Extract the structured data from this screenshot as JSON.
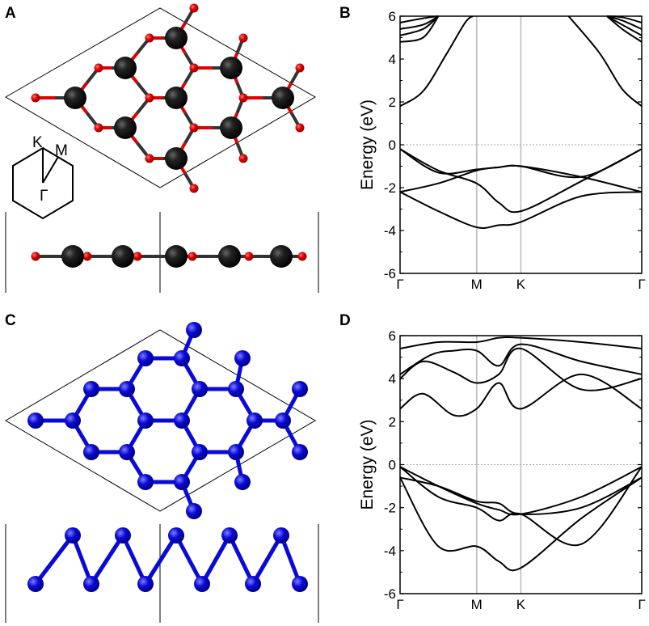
{
  "panels": {
    "A": "A",
    "B": "B",
    "C": "C",
    "D": "D"
  },
  "brillouin_zone": {
    "K": "K",
    "M": "M",
    "G": "Γ"
  },
  "colors": {
    "carbon": "#1a1a1a",
    "oxygen": "#e00000",
    "nitrogen": "#0a0ad8",
    "band": "#000000",
    "kline": "#bbbbbb",
    "fermi": "#aaaaaa"
  },
  "chart_data": [
    {
      "panel": "B",
      "type": "line",
      "ylabel": "Energy (eV)",
      "xlabel": "",
      "ylim": [
        -6,
        6
      ],
      "yticks": [
        6,
        4,
        2,
        0,
        -2,
        -4,
        -6
      ],
      "kpoint_labels": [
        "Γ",
        "M",
        "K",
        "Γ"
      ],
      "kpoint_pos": [
        0,
        1,
        1.577,
        3.155
      ],
      "series": [
        {
          "x": [
            0,
            0.5,
            1,
            1.289,
            1.577,
            2.366,
            3.155
          ],
          "y": [
            -0.2,
            -1.3,
            -1.15,
            -1.05,
            -1.0,
            -1.5,
            -0.2
          ]
        },
        {
          "x": [
            0,
            0.5,
            1,
            1.289,
            1.577,
            2.366,
            3.155
          ],
          "y": [
            -0.2,
            -1.2,
            -1.8,
            -2.7,
            -3.1,
            -1.7,
            -0.2
          ]
        },
        {
          "x": [
            0,
            0.5,
            1,
            1.289,
            1.577,
            2.366,
            3.155
          ],
          "y": [
            -2.2,
            -1.8,
            -1.2,
            -1.05,
            -1.0,
            -1.5,
            -2.2
          ]
        },
        {
          "x": [
            0,
            0.5,
            1,
            1.289,
            1.577,
            2.366,
            3.155
          ],
          "y": [
            -2.2,
            -3.1,
            -3.85,
            -3.75,
            -3.6,
            -2.4,
            -2.2
          ]
        },
        {
          "x": [
            0,
            0.3,
            0.6,
            0.85,
            0.95
          ],
          "y": [
            1.8,
            2.5,
            4.2,
            5.7,
            6.0
          ]
        },
        {
          "x": [
            2.2,
            2.6,
            2.9,
            3.155
          ],
          "y": [
            6.0,
            4.3,
            2.6,
            1.8
          ]
        },
        {
          "x": [
            0,
            0.3,
            0.5
          ],
          "y": [
            4.8,
            5.0,
            6.0
          ]
        },
        {
          "x": [
            0,
            0.3,
            0.5
          ],
          "y": [
            5.1,
            5.4,
            6.0
          ]
        },
        {
          "x": [
            0,
            0.3,
            0.5
          ],
          "y": [
            5.4,
            5.6,
            6.0
          ]
        },
        {
          "x": [
            0,
            0.3,
            0.5
          ],
          "y": [
            5.7,
            5.9,
            6.0
          ]
        },
        {
          "x": [
            2.7,
            2.9,
            3.155
          ],
          "y": [
            6.0,
            5.4,
            4.8
          ]
        },
        {
          "x": [
            2.7,
            2.9,
            3.155
          ],
          "y": [
            6.0,
            5.6,
            5.1
          ]
        },
        {
          "x": [
            2.7,
            2.9,
            3.155
          ],
          "y": [
            6.0,
            5.8,
            5.4
          ]
        },
        {
          "x": [
            2.7,
            2.9,
            3.155
          ],
          "y": [
            6.0,
            5.95,
            5.7
          ]
        }
      ]
    },
    {
      "panel": "D",
      "type": "line",
      "ylabel": "Energy (eV)",
      "xlabel": "",
      "ylim": [
        -6,
        6
      ],
      "yticks": [
        6,
        4,
        2,
        0,
        -2,
        -4,
        -6
      ],
      "kpoint_labels": [
        "Γ",
        "M",
        "K",
        "Γ"
      ],
      "kpoint_pos": [
        0,
        1,
        1.577,
        3.155
      ],
      "series": [
        {
          "x": [
            0,
            0.5,
            1,
            1.289,
            1.577,
            2.366,
            3.155
          ],
          "y": [
            -0.1,
            -1.0,
            -1.8,
            -2.1,
            -2.3,
            -1.5,
            -0.1
          ]
        },
        {
          "x": [
            0,
            0.5,
            1,
            1.289,
            1.577,
            2.366,
            3.155
          ],
          "y": [
            -0.1,
            -1.5,
            -2.0,
            -2.6,
            -2.3,
            -3.7,
            -0.1
          ]
        },
        {
          "x": [
            0,
            0.5,
            1,
            1.289,
            1.577,
            2.366,
            3.155
          ],
          "y": [
            -0.6,
            -3.8,
            -3.8,
            -4.5,
            -4.8,
            -2.5,
            -0.6
          ]
        },
        {
          "x": [
            0,
            0.5,
            1,
            1.289,
            1.577,
            2.366,
            3.155
          ],
          "y": [
            -0.6,
            -1.0,
            -1.7,
            -1.8,
            -2.3,
            -2.0,
            -0.6
          ]
        },
        {
          "x": [
            0,
            0.3,
            0.7,
            1,
            1.289,
            1.577,
            2.366,
            3.155
          ],
          "y": [
            2.6,
            3.3,
            2.3,
            2.6,
            3.8,
            2.6,
            4.2,
            2.6
          ]
        },
        {
          "x": [
            0,
            0.3,
            0.7,
            1,
            1.289,
            1.577,
            2.366,
            3.155
          ],
          "y": [
            4.0,
            4.8,
            4.3,
            3.8,
            4.2,
            5.4,
            3.5,
            4.0
          ]
        },
        {
          "x": [
            0,
            0.4,
            0.7,
            1,
            1.289,
            1.577,
            2.366,
            3.155
          ],
          "y": [
            4.2,
            5.1,
            5.3,
            5.3,
            4.6,
            5.6,
            4.8,
            4.2
          ]
        },
        {
          "x": [
            0,
            0.5,
            1,
            1.289,
            1.577,
            2.366,
            3.155
          ],
          "y": [
            5.4,
            5.7,
            5.7,
            5.9,
            5.9,
            5.7,
            5.4
          ]
        }
      ]
    }
  ]
}
